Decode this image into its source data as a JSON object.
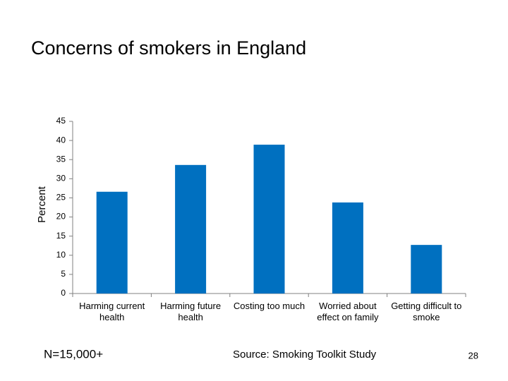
{
  "chart_data": {
    "type": "bar",
    "title": "Concerns of smokers in England",
    "y_label": "Percent",
    "categories": [
      "Harming current health",
      "Harming future health",
      "Costing too much",
      "Worried about effect on family",
      "Getting difficult to smoke"
    ],
    "values": [
      26.6,
      33.6,
      38.9,
      23.8,
      12.7
    ],
    "color": "#0070c0",
    "ylim": [
      0,
      45
    ],
    "yticks": [
      0,
      5,
      10,
      15,
      20,
      25,
      30,
      35,
      40,
      45
    ],
    "grid": false
  },
  "slide": {
    "note": "N=15,000+",
    "source": "Source: Smoking Toolkit Study",
    "page_number": "28"
  }
}
